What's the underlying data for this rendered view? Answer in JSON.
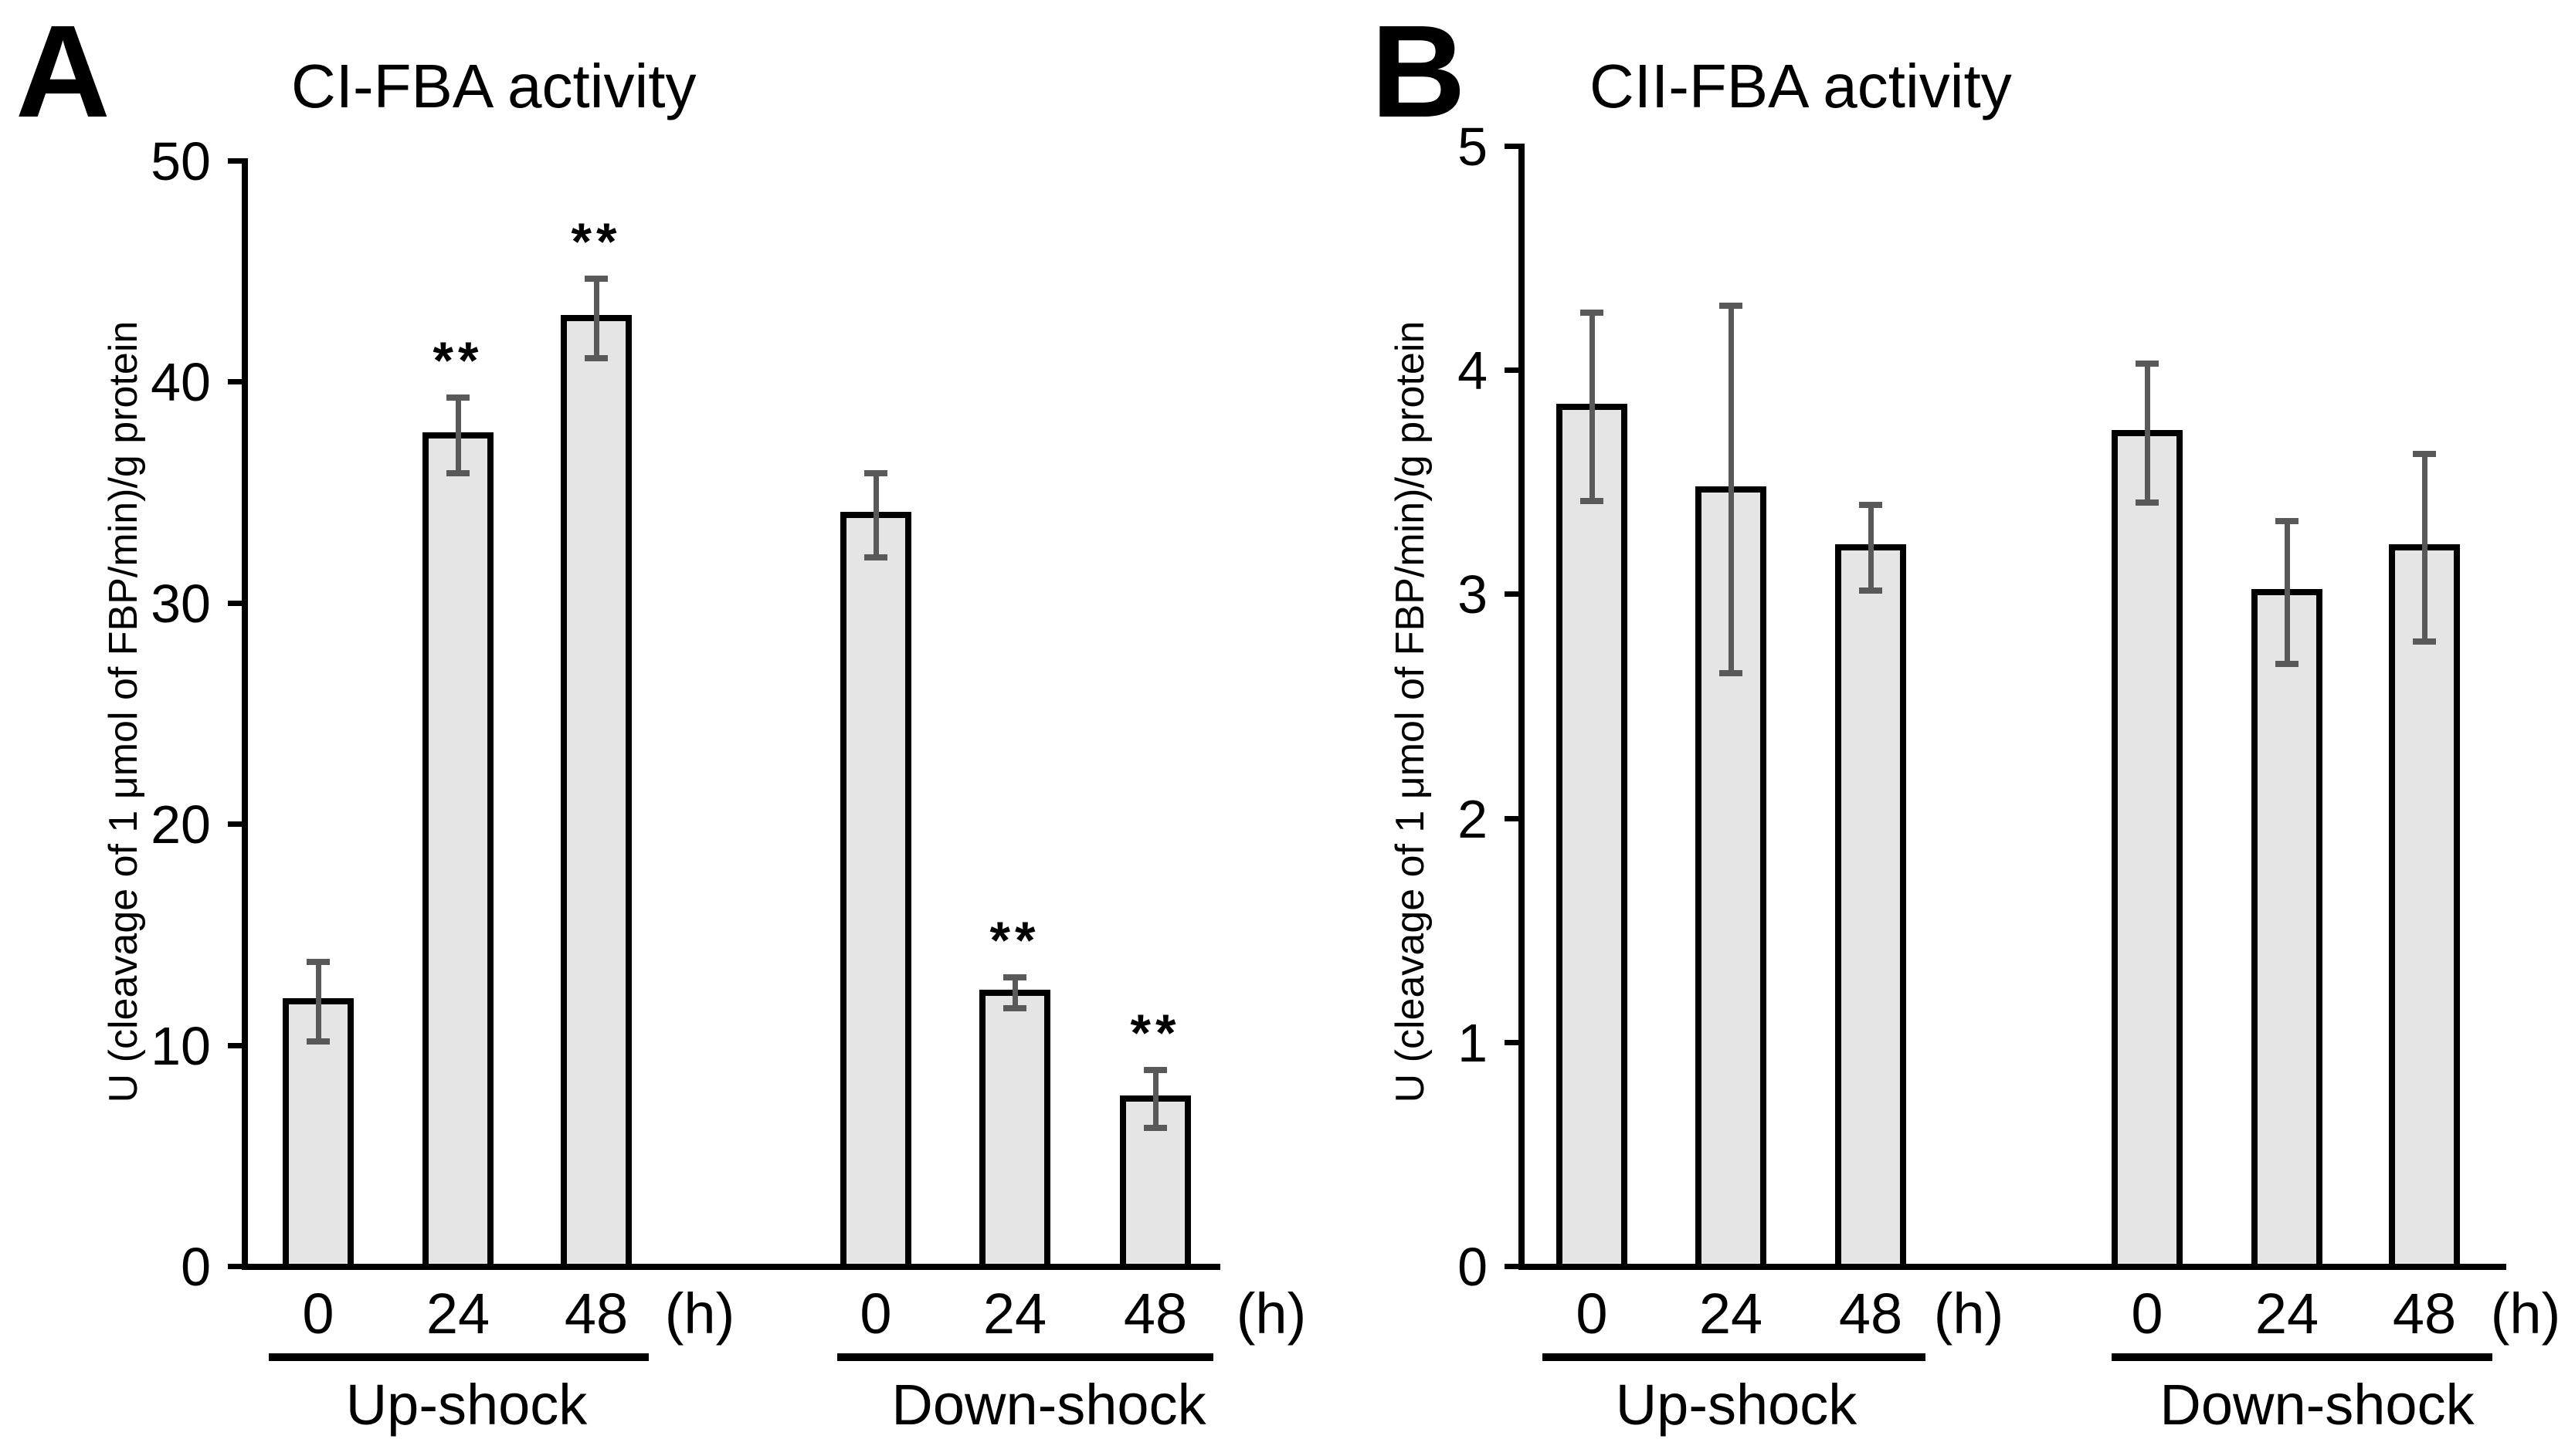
{
  "colors": {
    "background": "#ffffff",
    "bar_fill": "#e5e5e5",
    "bar_border": "#000000",
    "error_bar": "#595959",
    "text": "#000000"
  },
  "chart_data": [
    {
      "type": "bar",
      "panel_label": "A",
      "title": "CI-FBA activity",
      "ylabel": "U (cleavage of 1 μmol of FBP/min)/g protein",
      "x_unit": "(h)",
      "ylim": [
        0,
        50
      ],
      "yticks": [
        0,
        10,
        20,
        30,
        40,
        50
      ],
      "grid": false,
      "legend": false,
      "groups": [
        {
          "label": "Up-shock",
          "categories": [
            "0",
            "24",
            "48"
          ],
          "values": [
            12.0,
            37.6,
            42.9
          ],
          "errors": [
            1.8,
            1.7,
            1.8
          ],
          "significance": [
            "",
            "**",
            "**"
          ]
        },
        {
          "label": "Down-shock",
          "categories": [
            "0",
            "24",
            "48"
          ],
          "values": [
            34.0,
            12.4,
            7.6
          ],
          "errors": [
            1.9,
            0.7,
            1.3
          ],
          "significance": [
            "",
            "**",
            "**"
          ]
        }
      ]
    },
    {
      "type": "bar",
      "panel_label": "B",
      "title": "CII-FBA activity",
      "ylabel": "U (cleavage of 1 μmol of FBP/min)/g protein",
      "x_unit": "(h)",
      "ylim": [
        0,
        5
      ],
      "yticks": [
        0,
        1,
        2,
        3,
        4,
        5
      ],
      "grid": false,
      "legend": false,
      "groups": [
        {
          "label": "Up-shock",
          "categories": [
            "0",
            "24",
            "48"
          ],
          "values": [
            3.84,
            3.47,
            3.21
          ],
          "errors": [
            0.42,
            0.82,
            0.19
          ],
          "significance": [
            "",
            "",
            ""
          ]
        },
        {
          "label": "Down-shock",
          "categories": [
            "0",
            "24",
            "48"
          ],
          "values": [
            3.72,
            3.01,
            3.21
          ],
          "errors": [
            0.31,
            0.32,
            0.42
          ],
          "significance": [
            "",
            "",
            ""
          ]
        }
      ]
    }
  ]
}
